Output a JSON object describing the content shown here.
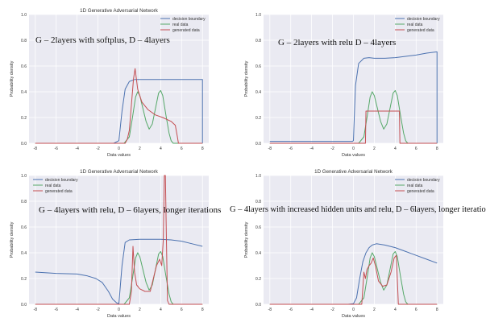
{
  "colors": {
    "plot_bg": "#eaeaf2",
    "grid": "#ffffff",
    "decision_boundary": "#4c72b0",
    "real_data": "#55a868",
    "generated_data": "#c44e52"
  },
  "chart_data": [
    {
      "type": "line",
      "title": "1D Generative Adversarial Network",
      "caption": "G – 2layers with softplus, D – 4layers",
      "xlabel": "Data values",
      "ylabel": "Probability density",
      "xlim": [
        -8.6,
        8.6
      ],
      "ylim": [
        0,
        1.0
      ],
      "x_ticks": [
        -8,
        -6,
        -4,
        -2,
        0,
        2,
        4,
        6,
        8
      ],
      "y_ticks": [
        0.0,
        0.2,
        0.4,
        0.6,
        0.8,
        1.0
      ],
      "grid": true,
      "legend_position": "top-right",
      "series": [
        {
          "name": "decision boundary",
          "color_key": "decision_boundary",
          "x": [
            -8,
            -2,
            -0.5,
            0,
            0.3,
            0.6,
            1.0,
            1.5,
            2.0,
            3,
            4,
            5,
            6,
            7,
            8,
            8
          ],
          "y": [
            0,
            0,
            0,
            0.02,
            0.25,
            0.42,
            0.48,
            0.495,
            0.495,
            0.495,
            0.495,
            0.495,
            0.495,
            0.495,
            0.495,
            0
          ]
        },
        {
          "name": "real data",
          "color_key": "real_data",
          "x": [
            -8,
            0.5,
            1.0,
            1.3,
            1.6,
            1.8,
            2.0,
            2.3,
            2.6,
            2.9,
            3.2,
            3.5,
            3.8,
            4.0,
            4.2,
            4.5,
            4.8,
            5.0,
            5.2,
            8
          ],
          "y": [
            0,
            0,
            0.05,
            0.2,
            0.36,
            0.4,
            0.37,
            0.27,
            0.17,
            0.11,
            0.15,
            0.27,
            0.39,
            0.41,
            0.37,
            0.22,
            0.08,
            0.02,
            0,
            0
          ]
        },
        {
          "name": "generated data",
          "color_key": "generated_data",
          "x": [
            -8,
            0.6,
            0.8,
            1.0,
            1.2,
            1.4,
            1.55,
            1.8,
            2.2,
            2.8,
            3.5,
            4.2,
            5.0,
            5.4,
            5.6,
            5.7,
            8
          ],
          "y": [
            0,
            0,
            0.03,
            0.1,
            0.3,
            0.5,
            0.58,
            0.42,
            0.32,
            0.26,
            0.22,
            0.2,
            0.17,
            0.14,
            0.05,
            0,
            0
          ]
        }
      ]
    },
    {
      "type": "line",
      "title": "",
      "caption": "G – 2layers with relu D – 4layers",
      "xlabel": "Data values",
      "ylabel": "Probability density",
      "xlim": [
        -8.6,
        8.6
      ],
      "ylim": [
        0,
        1.0
      ],
      "x_ticks": [
        -8,
        -6,
        -4,
        -2,
        0,
        2,
        4,
        6,
        8
      ],
      "y_ticks": [
        0.0,
        0.2,
        0.4,
        0.6,
        0.8,
        1.0
      ],
      "grid": true,
      "legend_position": "top-right",
      "series": [
        {
          "name": "decision boundary",
          "color_key": "decision_boundary",
          "x": [
            -8,
            -2,
            -0.5,
            -0.1,
            0,
            0.2,
            0.5,
            1.0,
            1.5,
            2.0,
            3.0,
            4.0,
            5.0,
            6.0,
            7.0,
            8.0,
            8.0
          ],
          "y": [
            0.015,
            0.015,
            0.015,
            0.015,
            0.02,
            0.45,
            0.62,
            0.66,
            0.665,
            0.66,
            0.66,
            0.665,
            0.675,
            0.685,
            0.7,
            0.71,
            0
          ]
        },
        {
          "name": "real data",
          "color_key": "real_data",
          "x": [
            -8,
            0.5,
            1.0,
            1.3,
            1.6,
            1.8,
            2.0,
            2.3,
            2.6,
            2.9,
            3.2,
            3.5,
            3.8,
            4.0,
            4.2,
            4.5,
            4.8,
            5.0,
            5.2,
            8
          ],
          "y": [
            0,
            0,
            0.05,
            0.2,
            0.36,
            0.4,
            0.37,
            0.27,
            0.17,
            0.11,
            0.15,
            0.27,
            0.39,
            0.41,
            0.37,
            0.22,
            0.08,
            0.02,
            0,
            0
          ]
        },
        {
          "name": "generated data",
          "color_key": "generated_data",
          "x": [
            -8,
            1.15,
            1.2,
            4.4,
            4.45,
            8
          ],
          "y": [
            0,
            0,
            0.25,
            0.25,
            0,
            0
          ]
        }
      ]
    },
    {
      "type": "line",
      "title": "1D Generative Adversarial Network",
      "caption": "G – 4layers with relu, D – 6layers, longer iterations",
      "xlabel": "Data values",
      "ylabel": "Probability density",
      "xlim": [
        -8.6,
        8.6
      ],
      "ylim": [
        0,
        1.0
      ],
      "x_ticks": [
        -8,
        -6,
        -4,
        -2,
        0,
        2,
        4,
        6,
        8
      ],
      "y_ticks": [
        0.0,
        0.2,
        0.4,
        0.6,
        0.8,
        1.0
      ],
      "grid": true,
      "legend_position": "top-left",
      "series": [
        {
          "name": "decision boundary",
          "color_key": "decision_boundary",
          "x": [
            -8,
            -6,
            -4,
            -3,
            -2.2,
            -1.6,
            -1.0,
            -0.6,
            -0.2,
            0,
            0.3,
            0.6,
            1.0,
            2,
            3,
            4,
            5,
            6,
            7,
            8
          ],
          "y": [
            0.25,
            0.24,
            0.235,
            0.22,
            0.2,
            0.17,
            0.1,
            0.04,
            0.01,
            0.005,
            0.3,
            0.48,
            0.5,
            0.505,
            0.505,
            0.505,
            0.5,
            0.49,
            0.47,
            0.45
          ]
        },
        {
          "name": "real data",
          "color_key": "real_data",
          "x": [
            -8,
            0.5,
            1.0,
            1.3,
            1.6,
            1.8,
            2.0,
            2.3,
            2.6,
            2.9,
            3.2,
            3.5,
            3.8,
            4.0,
            4.2,
            4.5,
            4.8,
            5.0,
            5.2,
            8
          ],
          "y": [
            0,
            0,
            0.05,
            0.2,
            0.36,
            0.4,
            0.37,
            0.27,
            0.17,
            0.11,
            0.15,
            0.27,
            0.39,
            0.41,
            0.37,
            0.22,
            0.08,
            0.02,
            0,
            0
          ]
        },
        {
          "name": "generated data",
          "color_key": "generated_data",
          "x": [
            -8,
            1.0,
            1.2,
            1.35,
            1.5,
            1.7,
            2.0,
            2.5,
            3.0,
            3.3,
            3.6,
            3.9,
            4.1,
            4.25,
            4.35,
            4.45,
            4.55,
            4.65,
            4.8,
            8
          ],
          "y": [
            0,
            0,
            0.1,
            0.45,
            0.25,
            0.15,
            0.12,
            0.1,
            0.1,
            0.2,
            0.3,
            0.35,
            0.3,
            0.5,
            1.0,
            1.0,
            0.5,
            0.03,
            0,
            0
          ]
        }
      ]
    },
    {
      "type": "line",
      "title": "1D Generative Adversarial Network",
      "caption": "G – 4layers with increased hidden units and relu, D – 6layers, longer iteratio",
      "xlabel": "Data values",
      "ylabel": "Probability density",
      "xlim": [
        -8.6,
        8.6
      ],
      "ylim": [
        0,
        1.0
      ],
      "x_ticks": [
        -8,
        -6,
        -4,
        -2,
        0,
        2,
        4,
        6,
        8
      ],
      "y_ticks": [
        0.0,
        0.2,
        0.4,
        0.6,
        0.8,
        1.0
      ],
      "grid": true,
      "legend_position": "top-right",
      "series": [
        {
          "name": "decision boundary",
          "color_key": "decision_boundary",
          "x": [
            -8,
            -2,
            -0.5,
            0,
            0.3,
            0.6,
            0.9,
            1.2,
            1.5,
            1.8,
            2.2,
            3,
            4,
            5,
            6,
            7,
            8
          ],
          "y": [
            0,
            0,
            0,
            0.005,
            0.05,
            0.2,
            0.33,
            0.4,
            0.44,
            0.46,
            0.47,
            0.46,
            0.44,
            0.41,
            0.38,
            0.35,
            0.32
          ]
        },
        {
          "name": "real data",
          "color_key": "real_data",
          "x": [
            -8,
            0.5,
            1.0,
            1.3,
            1.6,
            1.8,
            2.0,
            2.3,
            2.6,
            2.9,
            3.2,
            3.5,
            3.8,
            4.0,
            4.2,
            4.5,
            4.8,
            5.0,
            5.2,
            8
          ],
          "y": [
            0,
            0,
            0.05,
            0.2,
            0.36,
            0.4,
            0.37,
            0.27,
            0.17,
            0.11,
            0.15,
            0.27,
            0.39,
            0.41,
            0.37,
            0.22,
            0.08,
            0.02,
            0,
            0
          ]
        },
        {
          "name": "generated data",
          "color_key": "generated_data",
          "x": [
            -8,
            0.8,
            1.0,
            1.15,
            1.3,
            1.5,
            1.7,
            1.9,
            2.1,
            2.4,
            2.8,
            3.2,
            3.6,
            3.9,
            4.1,
            4.2,
            4.3,
            8
          ],
          "y": [
            0,
            0,
            0.25,
            0.2,
            0.27,
            0.3,
            0.32,
            0.36,
            0.3,
            0.18,
            0.14,
            0.15,
            0.25,
            0.36,
            0.38,
            0.2,
            0,
            0
          ]
        }
      ]
    }
  ]
}
